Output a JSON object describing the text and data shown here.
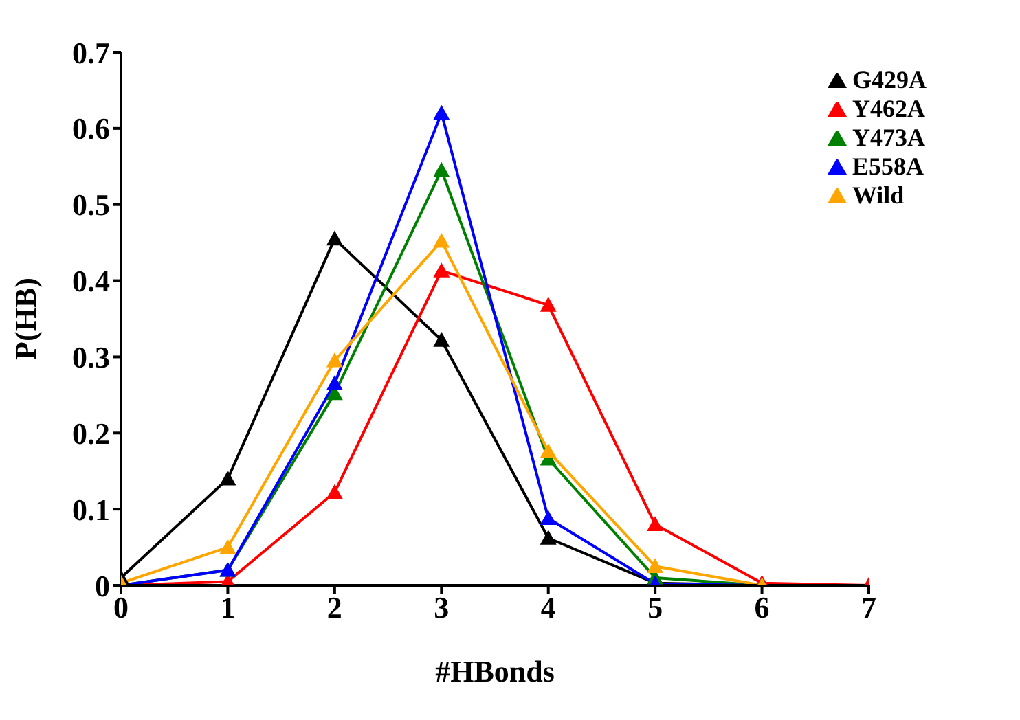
{
  "chart_data": {
    "type": "line",
    "xlabel": "#HBonds",
    "ylabel": "P(HB)",
    "x": [
      0,
      1,
      2,
      3,
      4,
      5,
      6,
      7
    ],
    "xlim": [
      0,
      7
    ],
    "xticks": [
      0,
      1,
      2,
      3,
      4,
      5,
      6,
      7
    ],
    "ylim": [
      0,
      0.7
    ],
    "yticks": [
      0,
      0.1,
      0.2,
      0.3,
      0.4,
      0.5,
      0.6,
      0.7
    ],
    "grid": false,
    "legend": "top right",
    "marker": "triangle",
    "line_style": "solid",
    "series": [
      {
        "name": "G429A",
        "color": "#000000",
        "values": [
          0.01,
          0.14,
          0.455,
          0.322,
          0.062,
          0.003,
          0,
          null
        ]
      },
      {
        "name": "Y462A",
        "color": "#ff0000",
        "values": [
          0,
          0.005,
          0.122,
          0.413,
          0.368,
          0.08,
          0.003,
          0
        ]
      },
      {
        "name": "Y473A",
        "color": "#008000",
        "values": [
          0,
          0.02,
          0.252,
          0.545,
          0.166,
          0.01,
          0,
          null
        ]
      },
      {
        "name": "E558A",
        "color": "#0000ff",
        "values": [
          0,
          0.02,
          0.265,
          0.62,
          0.088,
          0.002,
          0,
          null
        ]
      },
      {
        "name": "Wild",
        "color": "#ffa500",
        "values": [
          0.003,
          0.05,
          0.295,
          0.452,
          0.176,
          0.025,
          0,
          null
        ]
      }
    ]
  }
}
